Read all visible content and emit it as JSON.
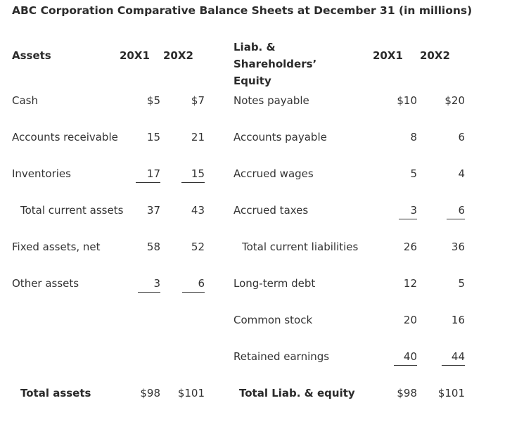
{
  "title": "ABC Corporation Comparative Balance Sheets at December 31 (in millions)",
  "headers": {
    "assets": "Assets",
    "a_20x1": "20X1",
    "a_20x2": "20X2",
    "liab": "Liab. & Shareholders’ Equity",
    "l_20x1": "20X1",
    "l_20x2": "20X2"
  },
  "rows": [
    {
      "a_label": "Cash",
      "a1": "$5",
      "a2": "$7",
      "l_label": "Notes payable",
      "l1": "$10",
      "l2": "$20"
    },
    {
      "a_label": "Accounts receivable",
      "a1": "15",
      "a2": "21",
      "l_label": "Accounts payable",
      "l1": "8",
      "l2": "6"
    },
    {
      "a_label": "Inventories",
      "a1": "17",
      "a2": "15",
      "l_label": "Accrued wages",
      "l1": "5",
      "l2": "4"
    },
    {
      "a_label": "Total current assets",
      "a1": "37",
      "a2": "43",
      "l_label": "Accrued taxes",
      "l1": "3",
      "l2": "6"
    },
    {
      "a_label": "Fixed assets, net",
      "a1": "58",
      "a2": "52",
      "l_label": "Total current liabilities",
      "l1": "26",
      "l2": "36"
    },
    {
      "a_label": "Other assets",
      "a1": "3",
      "a2": "6",
      "l_label": "Long-term debt",
      "l1": "12",
      "l2": "5"
    },
    {
      "a_label": "",
      "a1": "",
      "a2": "",
      "l_label": "Common stock",
      "l1": "20",
      "l2": "16"
    },
    {
      "a_label": "",
      "a1": "",
      "a2": "",
      "l_label": "Retained earnings",
      "l1": "40",
      "l2": "44"
    },
    {
      "a_label": "Total assets",
      "a1": "$98",
      "a2": "$101",
      "l_label": "Total Liab. & equity",
      "l1": "$98",
      "l2": "$101"
    }
  ]
}
